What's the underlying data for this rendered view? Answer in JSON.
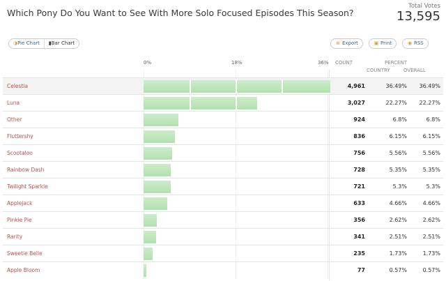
{
  "poll": {
    "title": "Which Pony Do You Want to See With More Solo Focused Episodes This Season?",
    "total_label": "Total Votes",
    "total_value": "13,595"
  },
  "controls": {
    "pie_label": "Pie Chart",
    "bar_label": "Bar Chart",
    "export_label": "Export",
    "print_label": "Print",
    "rss_label": "RSS"
  },
  "headers": {
    "count": "COUNT",
    "percent": "PERCENT",
    "country": "COUNTRY",
    "overall": "OVERALL"
  },
  "chart_data": {
    "type": "bar",
    "orientation": "horizontal",
    "title": "Which Pony Do You Want to See With More Solo Focused Episodes This Season?",
    "x_ticks": [
      "0%",
      "18%",
      "36%"
    ],
    "xlim": [
      0,
      36
    ],
    "bar_color": "#b8e2b4",
    "categories": [
      "Celestia",
      "Luna",
      "Other",
      "Fluttershy",
      "Scootaloo",
      "Rainbow Dash",
      "Twilight Sparkle",
      "Applejack",
      "Pinkie Pie",
      "Rarity",
      "Sweetie Belle",
      "Apple Bloom"
    ],
    "counts": [
      "4,961",
      "3,027",
      "924",
      "836",
      "756",
      "728",
      "721",
      "633",
      "356",
      "341",
      "235",
      "77"
    ],
    "country_pct": [
      "36.49%",
      "22.27%",
      "6.8%",
      "6.15%",
      "5.56%",
      "5.35%",
      "5.3%",
      "4.66%",
      "2.62%",
      "2.51%",
      "1.73%",
      "0.57%"
    ],
    "overall_pct": [
      "36.49%",
      "22.27%",
      "6.8%",
      "6.15%",
      "5.56%",
      "5.35%",
      "5.3%",
      "4.66%",
      "2.62%",
      "2.51%",
      "1.73%",
      "0.57%"
    ],
    "values": [
      36.49,
      22.27,
      6.8,
      6.15,
      5.56,
      5.35,
      5.3,
      4.66,
      2.62,
      2.51,
      1.73,
      0.57
    ]
  }
}
